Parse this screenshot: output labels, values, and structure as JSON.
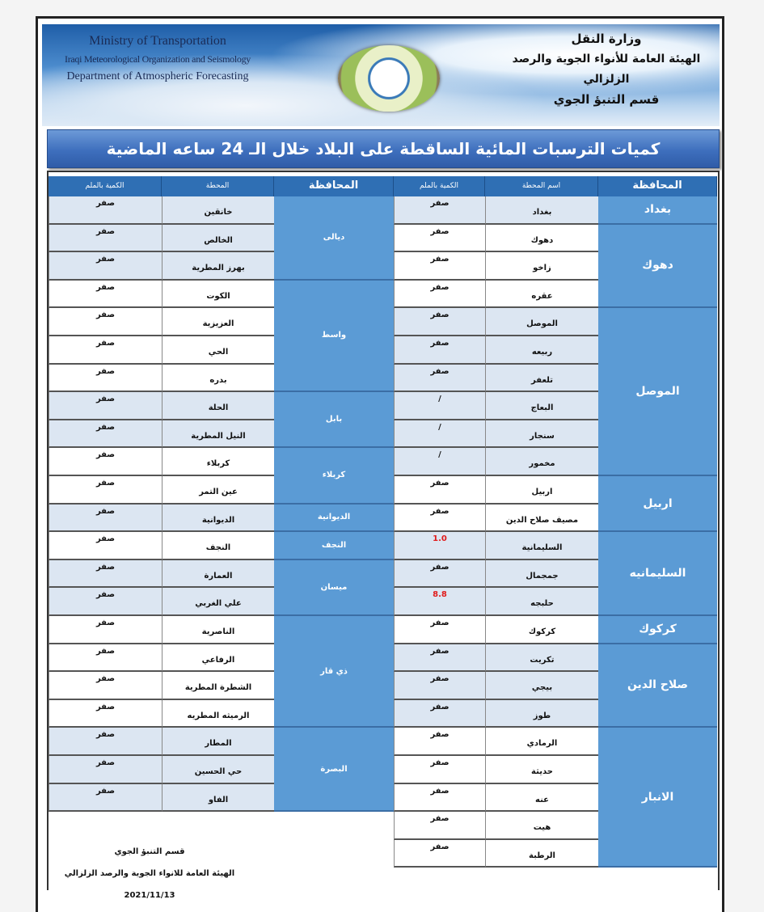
{
  "header": {
    "en_line1": "Ministry of Transportation",
    "en_line2": "Iraqi Meteorological Organization and Seismology",
    "en_line3": "Department of Atmospheric Forecasting",
    "ar_line1": "وزارة النقل",
    "ar_line2": "الهيئة العامة للأنواء الجوية والرصد الزلزالي",
    "ar_line3": "قسم التنبؤ الجوي"
  },
  "title": "كميات الترسبات المائية الساقطة على البلاد خلال الـ 24 ساعه الماضية",
  "right_table": {
    "headers": {
      "province": "المحافظة",
      "station": "اسم المحطة",
      "amount": "الكمية بالملم"
    },
    "groups": [
      {
        "province": "بغداد",
        "rows": [
          {
            "station": "بغداد",
            "amount": "صفر"
          }
        ]
      },
      {
        "province": "دهوك",
        "rows": [
          {
            "station": "دهوك",
            "amount": "صفر"
          },
          {
            "station": "زاخو",
            "amount": "صفر"
          },
          {
            "station": "عقره",
            "amount": "صفر"
          }
        ]
      },
      {
        "province": "الموصل",
        "rows": [
          {
            "station": "الموصل",
            "amount": "صفر"
          },
          {
            "station": "ربيعه",
            "amount": "صفر"
          },
          {
            "station": "تلعفر",
            "amount": "صفر"
          },
          {
            "station": "البعاج",
            "amount": "/"
          },
          {
            "station": "سنجار",
            "amount": "/"
          },
          {
            "station": "مخمور",
            "amount": "/"
          }
        ]
      },
      {
        "province": "اربيل",
        "rows": [
          {
            "station": "اربيل",
            "amount": "صفر"
          },
          {
            "station": "مصيف صلاح الدين",
            "amount": "صفر"
          }
        ]
      },
      {
        "province": "السليمانيه",
        "rows": [
          {
            "station": "السليمانية",
            "amount": "1.0",
            "highlight": true
          },
          {
            "station": "جمجمال",
            "amount": "صفر"
          },
          {
            "station": "حلبجه",
            "amount": "8.8",
            "highlight": true
          }
        ]
      },
      {
        "province": "كركوك",
        "rows": [
          {
            "station": "كركوك",
            "amount": "صفر"
          }
        ]
      },
      {
        "province": "صلاح الدين",
        "rows": [
          {
            "station": "تكريت",
            "amount": "صفر"
          },
          {
            "station": "بيجي",
            "amount": "صفر"
          },
          {
            "station": "طوز",
            "amount": "صفر"
          }
        ]
      },
      {
        "province": "الانبار",
        "rows": [
          {
            "station": "الرمادي",
            "amount": "صفر"
          },
          {
            "station": "حديثة",
            "amount": "صفر"
          },
          {
            "station": "عنه",
            "amount": "صفر"
          },
          {
            "station": "هيت",
            "amount": "صفر"
          },
          {
            "station": "الرطبة",
            "amount": "صفر"
          }
        ]
      }
    ]
  },
  "left_table": {
    "headers": {
      "province": "المحافظة",
      "station": "المحطة",
      "amount": "الكمية بالملم"
    },
    "groups": [
      {
        "province": "ديالى",
        "rows": [
          {
            "station": "خانقين",
            "amount": "صفر"
          },
          {
            "station": "الخالص",
            "amount": "صفر"
          },
          {
            "station": "بهرز المطرية",
            "amount": "صفر"
          }
        ]
      },
      {
        "province": "واسط",
        "rows": [
          {
            "station": "الكوت",
            "amount": "صفر"
          },
          {
            "station": "العزيزية",
            "amount": "صفر"
          },
          {
            "station": "الحي",
            "amount": "صفر"
          },
          {
            "station": "بدره",
            "amount": "صفر"
          }
        ]
      },
      {
        "province": "بابل",
        "rows": [
          {
            "station": "الحلة",
            "amount": "صفر"
          },
          {
            "station": "النيل المطرية",
            "amount": "صفر"
          }
        ]
      },
      {
        "province": "كربلاء",
        "rows": [
          {
            "station": "كربلاء",
            "amount": "صفر"
          },
          {
            "station": "عين التمر",
            "amount": "صفر"
          }
        ]
      },
      {
        "province": "الديوانية",
        "rows": [
          {
            "station": "الديوانية",
            "amount": "صفر"
          }
        ]
      },
      {
        "province": "النجف",
        "rows": [
          {
            "station": "النجف",
            "amount": "صفر"
          }
        ]
      },
      {
        "province": "ميسان",
        "rows": [
          {
            "station": "العمارة",
            "amount": "صفر"
          },
          {
            "station": "علي الغربي",
            "amount": "صفر"
          }
        ]
      },
      {
        "province": "ذي قار",
        "rows": [
          {
            "station": "الناصرية",
            "amount": "صفر"
          },
          {
            "station": "الرفاعي",
            "amount": "صفر"
          },
          {
            "station": "الشطرة المطرية",
            "amount": "صفر"
          },
          {
            "station": "الرميثه المطريه",
            "amount": "صفر"
          }
        ]
      },
      {
        "province": "البصرة",
        "rows": [
          {
            "station": "المطار",
            "amount": "صفر"
          },
          {
            "station": "حي الحسين",
            "amount": "صفر"
          },
          {
            "station": "الفاو",
            "amount": "صفر"
          }
        ]
      }
    ]
  },
  "footer": {
    "line1": "قسم التنبؤ الجوي",
    "line2": "الهيئة العامة للانواء الجوية والرصد الزلزالي",
    "date": "2021/11/13"
  },
  "colors": {
    "header_blue": "#2f6fb4",
    "province_blue": "#5b9bd5",
    "row_shade": "#dce6f2",
    "highlight_red": "#e01b1b"
  }
}
